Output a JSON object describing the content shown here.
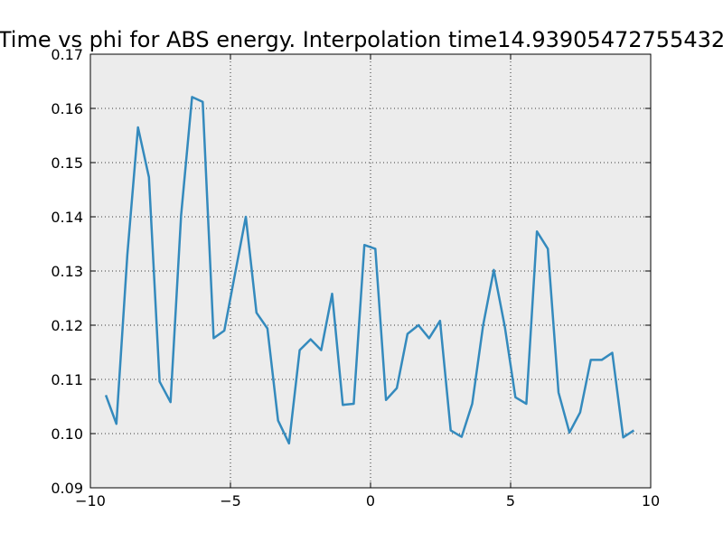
{
  "chart_data": {
    "type": "line",
    "title": "Time vs phi for ABS energy. Interpolation time14.93905472755432",
    "xlabel": "",
    "ylabel": "",
    "xlim": [
      -10,
      10
    ],
    "ylim": [
      0.09,
      0.17
    ],
    "x_ticks": [
      -10,
      -5,
      0,
      5,
      10
    ],
    "x_tick_labels": [
      "−10",
      "−5",
      "0",
      "5",
      "10"
    ],
    "y_ticks": [
      0.09,
      0.1,
      0.11,
      0.12,
      0.13,
      0.14,
      0.15,
      0.16,
      0.17
    ],
    "y_tick_labels": [
      "0.09",
      "0.10",
      "0.11",
      "0.12",
      "0.13",
      "0.14",
      "0.15",
      "0.16",
      "0.17"
    ],
    "grid": true,
    "background_color": "#ececec",
    "line_color": "#348abd",
    "series": [
      {
        "x": [
          -9.45,
          -9.07,
          -8.68,
          -8.3,
          -7.91,
          -7.53,
          -7.14,
          -6.76,
          -6.37,
          -5.99,
          -5.6,
          -5.22,
          -4.83,
          -4.45,
          -4.07,
          -3.68,
          -3.3,
          -2.91,
          -2.53,
          -2.14,
          -1.76,
          -1.37,
          -0.99,
          -0.6,
          -0.22,
          0.17,
          0.55,
          0.94,
          1.32,
          1.71,
          2.09,
          2.48,
          2.86,
          3.25,
          3.63,
          4.02,
          4.4,
          4.79,
          5.17,
          5.56,
          5.94,
          6.33,
          6.71,
          7.1,
          7.48,
          7.86,
          8.25,
          8.63,
          9.02,
          9.4
        ],
        "y": [
          0.1071,
          0.1018,
          0.133,
          0.1565,
          0.1473,
          0.1096,
          0.1058,
          0.1403,
          0.1621,
          0.1612,
          0.1176,
          0.119,
          0.1297,
          0.14,
          0.1223,
          0.1194,
          0.1024,
          0.0982,
          0.1154,
          0.1174,
          0.1154,
          0.1258,
          0.1053,
          0.1055,
          0.1348,
          0.1341,
          0.1062,
          0.1084,
          0.1184,
          0.12,
          0.1176,
          0.1208,
          0.1006,
          0.0994,
          0.1055,
          0.12,
          0.1302,
          0.1198,
          0.1067,
          0.1055,
          0.1373,
          0.1341,
          0.1076,
          0.1002,
          0.1039,
          0.1136,
          0.1136,
          0.1149,
          0.0993,
          0.1006
        ]
      }
    ]
  }
}
